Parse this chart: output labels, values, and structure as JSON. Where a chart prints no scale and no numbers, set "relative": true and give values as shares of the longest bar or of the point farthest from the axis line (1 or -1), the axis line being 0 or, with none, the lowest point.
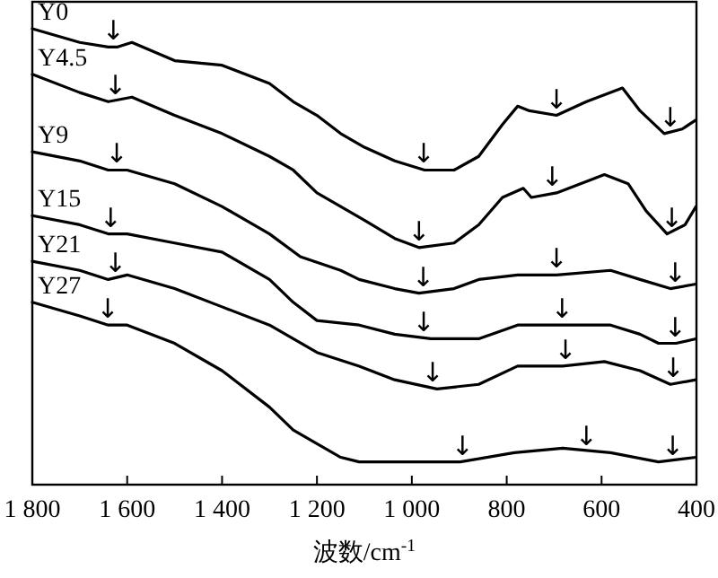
{
  "chart_data": {
    "type": "line",
    "relative": true,
    "xlabel": "波数/cm$^{-1}$",
    "xlim": [
      1800,
      400
    ],
    "xticks": [
      {
        "value": 1800,
        "label": "1 800"
      },
      {
        "value": 1600,
        "label": "1 600"
      },
      {
        "value": 1400,
        "label": "1 400"
      },
      {
        "value": 1200,
        "label": "1 200"
      },
      {
        "value": 1000,
        "label": "1 000"
      },
      800,
      600,
      400
    ],
    "tick_labels": "x",
    "series": [
      {
        "name": "Y0",
        "color": "#000000",
        "x": [
          1800,
          1700,
          1640,
          1620,
          1590,
          1500,
          1400,
          1300,
          1250,
          1200,
          1150,
          1100,
          1036,
          973,
          911,
          859,
          809,
          777,
          752,
          695,
          632,
          556,
          519,
          468,
          430,
          401
        ],
        "values": [
          1.0,
          0.97,
          0.96,
          0.96,
          0.97,
          0.93,
          0.92,
          0.88,
          0.84,
          0.81,
          0.77,
          0.74,
          0.71,
          0.69,
          0.69,
          0.72,
          0.79,
          0.83,
          0.82,
          0.81,
          0.84,
          0.87,
          0.82,
          0.77,
          0.78,
          0.8
        ]
      },
      {
        "name": "Y4.5",
        "color": "#000000",
        "x": [
          1800,
          1700,
          1640,
          1590,
          1500,
          1400,
          1300,
          1250,
          1200,
          1150,
          1100,
          1036,
          985,
          911,
          859,
          809,
          765,
          748,
          695,
          594,
          544,
          506,
          462,
          424,
          401
        ],
        "values": [
          0.9,
          0.86,
          0.84,
          0.85,
          0.81,
          0.77,
          0.72,
          0.69,
          0.64,
          0.61,
          0.58,
          0.54,
          0.52,
          0.53,
          0.57,
          0.63,
          0.65,
          0.63,
          0.64,
          0.68,
          0.66,
          0.6,
          0.55,
          0.57,
          0.61
        ]
      },
      {
        "name": "Y9",
        "color": "#000000",
        "x": [
          1800,
          1700,
          1640,
          1600,
          1500,
          1400,
          1300,
          1235,
          1150,
          1111,
          1036,
          985,
          911,
          859,
          777,
          695,
          581,
          519,
          455,
          401
        ],
        "values": [
          0.73,
          0.71,
          0.69,
          0.69,
          0.66,
          0.61,
          0.55,
          0.5,
          0.47,
          0.45,
          0.43,
          0.42,
          0.43,
          0.45,
          0.46,
          0.46,
          0.47,
          0.45,
          0.43,
          0.44
        ]
      },
      {
        "name": "Y15",
        "color": "#000000",
        "x": [
          1800,
          1700,
          1640,
          1600,
          1500,
          1400,
          1300,
          1250,
          1200,
          1111,
          1036,
          960,
          859,
          777,
          695,
          581,
          519,
          480,
          443,
          401
        ],
        "values": [
          0.59,
          0.57,
          0.55,
          0.55,
          0.53,
          0.51,
          0.45,
          0.4,
          0.36,
          0.35,
          0.33,
          0.32,
          0.32,
          0.35,
          0.35,
          0.35,
          0.33,
          0.31,
          0.31,
          0.32
        ]
      },
      {
        "name": "Y21",
        "color": "#000000",
        "x": [
          1800,
          1700,
          1640,
          1600,
          1500,
          1400,
          1300,
          1250,
          1200,
          1111,
          1036,
          947,
          859,
          777,
          682,
          594,
          519,
          455,
          401
        ],
        "values": [
          0.49,
          0.47,
          0.45,
          0.46,
          0.43,
          0.39,
          0.35,
          0.32,
          0.29,
          0.26,
          0.23,
          0.21,
          0.22,
          0.26,
          0.26,
          0.27,
          0.25,
          0.22,
          0.23
        ]
      },
      {
        "name": "Y27",
        "color": "#000000",
        "x": [
          1800,
          1700,
          1640,
          1600,
          1500,
          1400,
          1300,
          1250,
          1200,
          1150,
          1111,
          1036,
          898,
          784,
          682,
          581,
          480,
          401
        ],
        "values": [
          0.4,
          0.37,
          0.35,
          0.35,
          0.31,
          0.25,
          0.17,
          0.12,
          0.09,
          0.06,
          0.05,
          0.05,
          0.05,
          0.07,
          0.08,
          0.07,
          0.05,
          0.06
        ]
      }
    ],
    "annotations": [
      {
        "text": "↓",
        "x": 1629,
        "y": 0.96
      },
      {
        "text": "↓",
        "x": 975,
        "y": 0.69
      },
      {
        "text": "↓",
        "x": 695,
        "y": 0.81
      },
      {
        "text": "↓",
        "x": 455,
        "y": 0.77
      },
      {
        "text": "↓",
        "x": 1625,
        "y": 0.84
      },
      {
        "text": "↓",
        "x": 985,
        "y": 0.52
      },
      {
        "text": "↓",
        "x": 704,
        "y": 0.64
      },
      {
        "text": "↓",
        "x": 452,
        "y": 0.55
      },
      {
        "text": "↓",
        "x": 1622,
        "y": 0.69
      },
      {
        "text": "↓",
        "x": 976,
        "y": 0.42
      },
      {
        "text": "↓",
        "x": 695,
        "y": 0.46
      },
      {
        "text": "↓",
        "x": 445,
        "y": 0.43
      },
      {
        "text": "↓",
        "x": 1635,
        "y": 0.55
      },
      {
        "text": "↓",
        "x": 975,
        "y": 0.32
      },
      {
        "text": "↓",
        "x": 683,
        "y": 0.35
      },
      {
        "text": "↓",
        "x": 445,
        "y": 0.31
      },
      {
        "text": "↓",
        "x": 1625,
        "y": 0.45
      },
      {
        "text": "↓",
        "x": 956,
        "y": 0.21
      },
      {
        "text": "↓",
        "x": 676,
        "y": 0.26
      },
      {
        "text": "↓",
        "x": 449,
        "y": 0.22
      },
      {
        "text": "↓",
        "x": 1641,
        "y": 0.35
      },
      {
        "text": "↓",
        "x": 893,
        "y": 0.05
      },
      {
        "text": "↓",
        "x": 632,
        "y": 0.07
      },
      {
        "text": "↓",
        "x": 450,
        "y": 0.05
      }
    ]
  }
}
